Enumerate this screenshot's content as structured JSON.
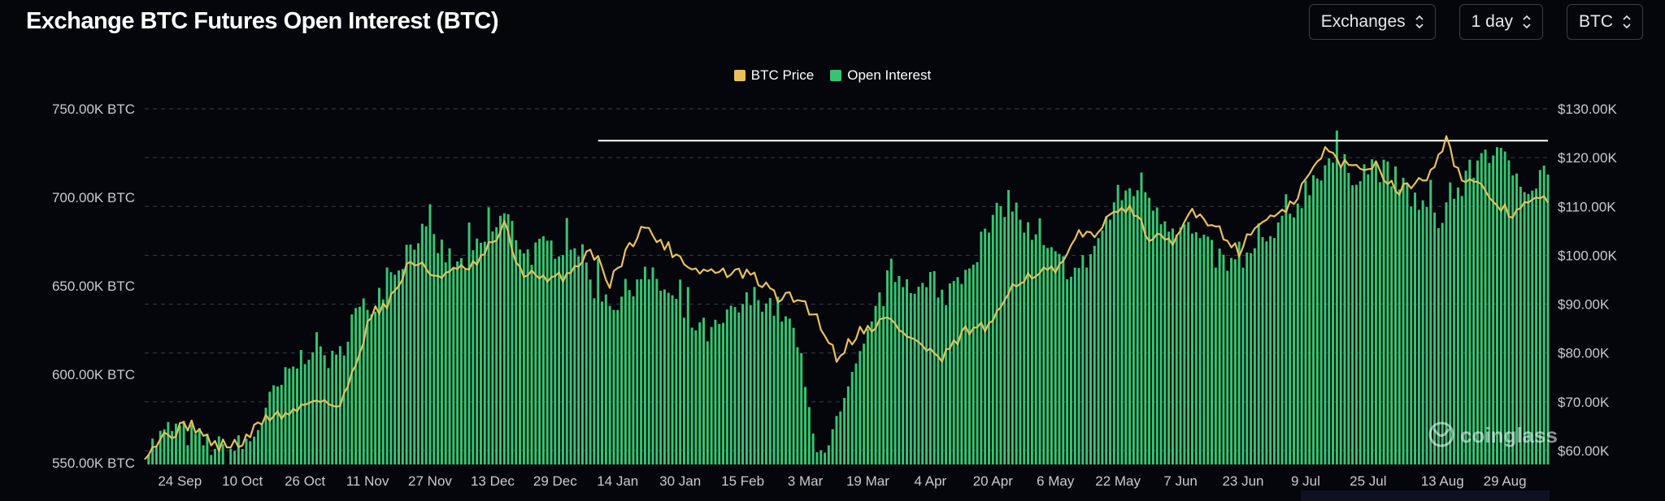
{
  "title": "Exchange BTC Futures Open Interest (BTC)",
  "controls": [
    {
      "label": "Exchanges"
    },
    {
      "label": "1 day"
    },
    {
      "label": "BTC"
    }
  ],
  "watermark": "coinglass",
  "colors": {
    "price": "#e8c15a",
    "oi": "#36c474",
    "background": "#05060b",
    "grid": "#3a3d47",
    "resistance": "#ffffff"
  },
  "chart_data": {
    "type": "bar",
    "title": "Exchange BTC Futures Open Interest (BTC)",
    "legend": {
      "placement": "top-center",
      "entries": [
        "BTC Price",
        "Open Interest"
      ]
    },
    "grid": true,
    "x_range": [
      "2024-09-15",
      "2025-09-09"
    ],
    "x_ticks": [
      "24 Sep",
      "10 Oct",
      "26 Oct",
      "11 Nov",
      "27 Nov",
      "13 Dec",
      "29 Dec",
      "14 Jan",
      "30 Jan",
      "15 Feb",
      "3 Mar",
      "19 Mar",
      "4 Apr",
      "20 Apr",
      "6 May",
      "22 May",
      "7 Jun",
      "23 Jun",
      "9 Jul",
      "25 Jul",
      "13 Aug",
      "29 Aug"
    ],
    "y_left": {
      "ticks": [
        "550.00K BTC",
        "600.00K BTC",
        "650.00K BTC",
        "700.00K BTC",
        "750.00K BTC"
      ],
      "range": [
        543000,
        751000
      ]
    },
    "y_right": {
      "ticks": [
        "$60.00K",
        "$70.00K",
        "$80.00K",
        "$90.00K",
        "$100.00K",
        "$110.00K",
        "$120.00K",
        "$130.00K"
      ],
      "range": [
        57000,
        130000
      ]
    },
    "reference_line": {
      "axis": "left",
      "value": 732000,
      "from": "2025-01-09",
      "to": "2025-09-09"
    },
    "series": [
      {
        "name": "Open Interest",
        "axis": "left",
        "type": "bar",
        "anchors": [
          [
            "2024-09-15",
            556000
          ],
          [
            "2024-09-22",
            570000
          ],
          [
            "2024-09-30",
            562000
          ],
          [
            "2024-10-06",
            556000
          ],
          [
            "2024-10-12",
            562000
          ],
          [
            "2024-10-18",
            588000
          ],
          [
            "2024-10-22",
            600000
          ],
          [
            "2024-10-28",
            618000
          ],
          [
            "2024-11-03",
            605000
          ],
          [
            "2024-11-07",
            632000
          ],
          [
            "2024-11-12",
            640000
          ],
          [
            "2024-11-18",
            660000
          ],
          [
            "2024-11-24",
            680000
          ],
          [
            "2024-11-28",
            675000
          ],
          [
            "2024-12-04",
            660000
          ],
          [
            "2024-12-10",
            672000
          ],
          [
            "2024-12-16",
            690000
          ],
          [
            "2024-12-22",
            668000
          ],
          [
            "2024-12-28",
            672000
          ],
          [
            "2025-01-03",
            676000
          ],
          [
            "2025-01-08",
            650000
          ],
          [
            "2025-01-14",
            640000
          ],
          [
            "2025-01-20",
            658000
          ],
          [
            "2025-01-26",
            648000
          ],
          [
            "2025-02-01",
            630000
          ],
          [
            "2025-02-07",
            622000
          ],
          [
            "2025-02-13",
            635000
          ],
          [
            "2025-02-19",
            645000
          ],
          [
            "2025-02-25",
            635000
          ],
          [
            "2025-03-01",
            618000
          ],
          [
            "2025-03-05",
            565000
          ],
          [
            "2025-03-09",
            558000
          ],
          [
            "2025-03-13",
            582000
          ],
          [
            "2025-03-19",
            620000
          ],
          [
            "2025-03-25",
            658000
          ],
          [
            "2025-03-31",
            652000
          ],
          [
            "2025-04-06",
            640000
          ],
          [
            "2025-04-12",
            658000
          ],
          [
            "2025-04-18",
            678000
          ],
          [
            "2025-04-24",
            700000
          ],
          [
            "2025-04-30",
            676000
          ],
          [
            "2025-05-06",
            664000
          ],
          [
            "2025-05-12",
            658000
          ],
          [
            "2025-05-16",
            672000
          ],
          [
            "2025-05-22",
            700000
          ],
          [
            "2025-05-28",
            708000
          ],
          [
            "2025-06-03",
            688000
          ],
          [
            "2025-06-09",
            682000
          ],
          [
            "2025-06-15",
            668000
          ],
          [
            "2025-06-21",
            660000
          ],
          [
            "2025-06-27",
            670000
          ],
          [
            "2025-07-03",
            682000
          ],
          [
            "2025-07-09",
            705000
          ],
          [
            "2025-07-15",
            722000
          ],
          [
            "2025-07-21",
            714000
          ],
          [
            "2025-07-27",
            718000
          ],
          [
            "2025-08-02",
            708000
          ],
          [
            "2025-08-08",
            694000
          ],
          [
            "2025-08-12",
            688000
          ],
          [
            "2025-08-18",
            706000
          ],
          [
            "2025-08-24",
            728000
          ],
          [
            "2025-08-30",
            718000
          ],
          [
            "2025-09-05",
            706000
          ],
          [
            "2025-09-09",
            718000
          ]
        ]
      },
      {
        "name": "BTC Price",
        "axis": "right",
        "type": "line",
        "anchors": [
          [
            "2024-09-15",
            59500
          ],
          [
            "2024-09-20",
            63000
          ],
          [
            "2024-09-27",
            65500
          ],
          [
            "2024-10-03",
            61000
          ],
          [
            "2024-10-10",
            61500
          ],
          [
            "2024-10-16",
            67000
          ],
          [
            "2024-10-22",
            67500
          ],
          [
            "2024-10-29",
            71000
          ],
          [
            "2024-11-04",
            68500
          ],
          [
            "2024-11-07",
            76000
          ],
          [
            "2024-11-12",
            88000
          ],
          [
            "2024-11-17",
            91000
          ],
          [
            "2024-11-22",
            99000
          ],
          [
            "2024-11-28",
            96000
          ],
          [
            "2024-12-03",
            96500
          ],
          [
            "2024-12-09",
            98000
          ],
          [
            "2024-12-16",
            106000
          ],
          [
            "2024-12-20",
            97000
          ],
          [
            "2024-12-27",
            94500
          ],
          [
            "2025-01-02",
            96500
          ],
          [
            "2025-01-07",
            101500
          ],
          [
            "2025-01-12",
            94500
          ],
          [
            "2025-01-20",
            106000
          ],
          [
            "2025-01-27",
            101500
          ],
          [
            "2025-02-03",
            97000
          ],
          [
            "2025-02-10",
            96500
          ],
          [
            "2025-02-17",
            96000
          ],
          [
            "2025-02-24",
            91500
          ],
          [
            "2025-03-02",
            91000
          ],
          [
            "2025-03-07",
            86000
          ],
          [
            "2025-03-11",
            79000
          ],
          [
            "2025-03-16",
            84000
          ],
          [
            "2025-03-24",
            87000
          ],
          [
            "2025-03-31",
            82500
          ],
          [
            "2025-04-07",
            78500
          ],
          [
            "2025-04-13",
            84500
          ],
          [
            "2025-04-20",
            85500
          ],
          [
            "2025-04-25",
            94500
          ],
          [
            "2025-05-01",
            96500
          ],
          [
            "2025-05-07",
            97000
          ],
          [
            "2025-05-12",
            104000
          ],
          [
            "2025-05-18",
            105500
          ],
          [
            "2025-05-23",
            111000
          ],
          [
            "2025-05-30",
            104000
          ],
          [
            "2025-06-05",
            102000
          ],
          [
            "2025-06-10",
            109500
          ],
          [
            "2025-06-16",
            106000
          ],
          [
            "2025-06-22",
            101000
          ],
          [
            "2025-06-28",
            107500
          ],
          [
            "2025-07-04",
            108500
          ],
          [
            "2025-07-10",
            116500
          ],
          [
            "2025-07-14",
            121500
          ],
          [
            "2025-07-20",
            118000
          ],
          [
            "2025-07-27",
            118500
          ],
          [
            "2025-08-02",
            113000
          ],
          [
            "2025-08-09",
            116500
          ],
          [
            "2025-08-14",
            123500
          ],
          [
            "2025-08-18",
            115500
          ],
          [
            "2025-08-24",
            113000
          ],
          [
            "2025-08-30",
            108500
          ],
          [
            "2025-09-05",
            111000
          ],
          [
            "2025-09-09",
            111500
          ]
        ]
      }
    ]
  }
}
